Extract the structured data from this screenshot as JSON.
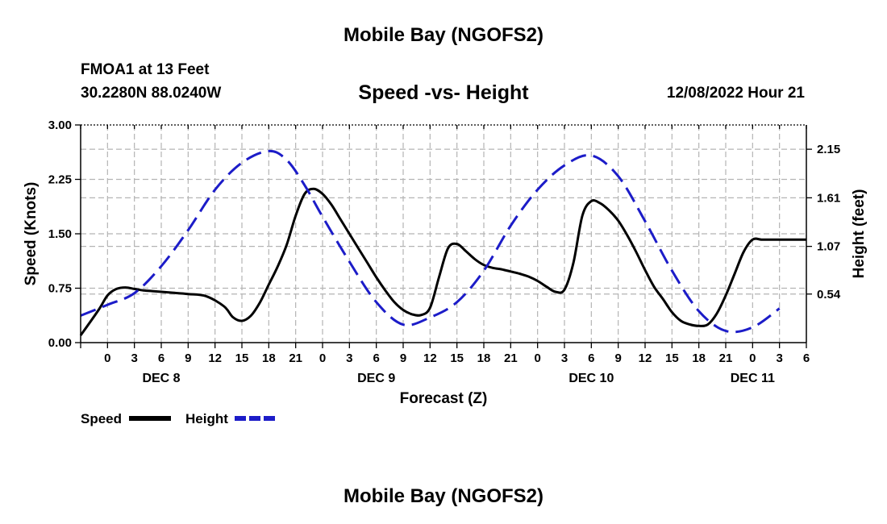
{
  "page": {
    "title": "Mobile Bay (NGOFS2)",
    "station": "FMOA1 at 13 Feet",
    "coords": "30.2280N  88.0240W",
    "subtitle": "Speed -vs- Height",
    "forecast_time": "12/08/2022 Hour 21",
    "footer_title": "Mobile Bay (NGOFS2)"
  },
  "legend": {
    "speed_label": "Speed",
    "height_label": "Height"
  },
  "colors": {
    "speed": "#000000",
    "height": "#1c1cc8",
    "grid": "#b4b4b4"
  },
  "chart_data": {
    "type": "line",
    "title": "Speed -vs- Height",
    "xlabel": "Forecast (Z)",
    "ylabel": "Speed (Knots)",
    "ylabel_right": "Height (feet)",
    "x_unit": "hours since DEC 8 00Z",
    "xlim": [
      -3,
      78
    ],
    "ylim": [
      0,
      3
    ],
    "ylim_right": [
      0,
      2.42
    ],
    "x_ticks": [
      -3,
      0,
      3,
      6,
      9,
      12,
      15,
      18,
      21,
      24,
      27,
      30,
      33,
      36,
      39,
      42,
      45,
      48,
      51,
      54,
      57,
      60,
      63,
      66,
      69,
      72,
      75,
      78
    ],
    "x_tick_labels": [
      "0",
      "3",
      "6",
      "9",
      "12",
      "15",
      "18",
      "21",
      "0",
      "3",
      "6",
      "9",
      "12",
      "15",
      "18",
      "21",
      "0",
      "3",
      "6",
      "9",
      "12",
      "15",
      "18",
      "21",
      "0",
      "3",
      "6"
    ],
    "x_tick_label_start": 0,
    "day_labels": [
      {
        "x": 6,
        "label": "DEC 8"
      },
      {
        "x": 30,
        "label": "DEC 9"
      },
      {
        "x": 54,
        "label": "DEC 10"
      },
      {
        "x": 72,
        "label": "DEC 11"
      }
    ],
    "y_ticks": [
      0,
      0.75,
      1.5,
      2.25,
      3
    ],
    "y_tick_labels": [
      "0.00",
      "0.75",
      "1.50",
      "2.25",
      "3.00"
    ],
    "y_ticks_right": [
      0.54,
      1.07,
      1.61,
      2.15
    ],
    "y_tick_labels_right": [
      "0.54",
      "1.07",
      "1.61",
      "2.15"
    ],
    "grid": true,
    "series": [
      {
        "name": "Speed",
        "axis": "left",
        "style": "solid",
        "x": [
          -3,
          -1,
          0,
          1,
          2,
          3,
          4,
          5,
          7,
          9,
          11,
          13,
          14,
          15,
          16,
          17,
          18,
          19,
          20,
          21,
          22,
          23,
          24,
          25,
          26,
          27,
          28,
          29,
          30,
          31,
          32,
          33,
          34,
          35,
          36,
          37,
          38,
          39,
          40,
          41,
          42,
          43,
          44,
          45,
          46,
          47,
          48,
          49,
          50,
          51,
          52,
          53,
          54,
          55,
          56,
          57,
          58,
          59,
          60,
          61,
          62,
          63,
          64,
          65,
          66,
          67,
          68,
          69,
          70,
          71,
          72,
          73,
          74,
          75,
          76,
          77,
          78
        ],
        "values": [
          0.1,
          0.45,
          0.65,
          0.74,
          0.76,
          0.74,
          0.72,
          0.71,
          0.69,
          0.67,
          0.64,
          0.5,
          0.35,
          0.3,
          0.37,
          0.55,
          0.8,
          1.05,
          1.35,
          1.75,
          2.05,
          2.12,
          2.05,
          1.9,
          1.7,
          1.5,
          1.3,
          1.1,
          0.9,
          0.72,
          0.56,
          0.45,
          0.39,
          0.38,
          0.48,
          0.9,
          1.3,
          1.36,
          1.26,
          1.15,
          1.07,
          1.03,
          1.01,
          0.98,
          0.95,
          0.91,
          0.85,
          0.77,
          0.7,
          0.73,
          1.1,
          1.75,
          1.95,
          1.92,
          1.82,
          1.68,
          1.48,
          1.25,
          1.0,
          0.77,
          0.6,
          0.42,
          0.3,
          0.25,
          0.23,
          0.25,
          0.4,
          0.65,
          0.95,
          1.25,
          1.42,
          1.42,
          1.42,
          1.42,
          1.42,
          1.42,
          1.42
        ]
      },
      {
        "name": "Height",
        "axis": "right",
        "style": "dashed",
        "x": [
          -3,
          0,
          3,
          6,
          9,
          12,
          15,
          18,
          20,
          22,
          24,
          27,
          30,
          33,
          36,
          39,
          42,
          45,
          48,
          51,
          54,
          57,
          60,
          63,
          66,
          69,
          72,
          75
        ],
        "values": [
          0.3,
          0.42,
          0.55,
          0.85,
          1.25,
          1.7,
          2.0,
          2.13,
          2.03,
          1.75,
          1.4,
          0.9,
          0.45,
          0.2,
          0.28,
          0.45,
          0.8,
          1.3,
          1.7,
          1.97,
          2.08,
          1.85,
          1.35,
          0.8,
          0.35,
          0.13,
          0.17,
          0.38
        ]
      }
    ]
  }
}
